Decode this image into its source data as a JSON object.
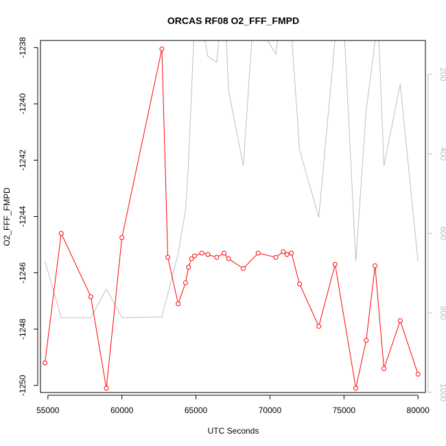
{
  "chart_data": {
    "type": "line",
    "title": "ORCAS RF08 O2_FFF_FMPD",
    "xlabel": "UTC Seconds",
    "ylabel": "O2_FFF_FMPD",
    "xlim": [
      54500,
      80500
    ],
    "ylim": [
      -1250.25,
      -1237.75
    ],
    "x_ticks": [
      "55000",
      "60000",
      "65000",
      "70000",
      "75000",
      "80000"
    ],
    "y_ticks": [
      "-1250",
      "-1248",
      "-1246",
      "-1244",
      "-1242",
      "-1240",
      "-1238"
    ],
    "secondary_axis": {
      "position": "right",
      "ticks": [
        "200",
        "400",
        "600",
        "800",
        "1000"
      ],
      "lim": [
        1000,
        115
      ],
      "color": "#bbbbbb"
    },
    "grid": false,
    "legend": "none",
    "series": [
      {
        "color": "#ff0000",
        "axis": "left",
        "style": "line+points",
        "x": [
          54800,
          55900,
          57900,
          58950,
          60000,
          62700,
          63100,
          63800,
          64300,
          64500,
          64700,
          64900,
          65400,
          65800,
          66400,
          66900,
          67200,
          68200,
          69200,
          70400,
          70900,
          71150,
          71450,
          72000,
          73300,
          74400,
          75800,
          76500,
          77100,
          77700,
          78800,
          80000
        ],
        "values": [
          -1249.2,
          -1244.6,
          -1246.85,
          -1250.1,
          -1244.75,
          -1238.05,
          -1245.45,
          -1247.1,
          -1246.35,
          -1245.8,
          -1245.5,
          -1245.4,
          -1245.3,
          -1245.35,
          -1245.45,
          -1245.3,
          -1245.5,
          -1245.85,
          -1245.3,
          -1245.45,
          -1245.25,
          -1245.35,
          -1245.3,
          -1246.4,
          -1247.9,
          -1245.7,
          -1250.1,
          -1248.4,
          -1245.75,
          -1249.4,
          -1247.7,
          -1249.6
        ]
      },
      {
        "color": "#bebebe",
        "axis": "right",
        "style": "line",
        "x": [
          54800,
          55900,
          57900,
          58950,
          60000,
          62700,
          63800,
          64300,
          64500,
          65000,
          65800,
          66400,
          66900,
          67200,
          68200,
          68800,
          69200,
          69600,
          70400,
          71000,
          71450,
          72000,
          73300,
          74400,
          75000,
          75800,
          76500,
          77300,
          77700,
          78800,
          80000
        ],
        "values": [
          670,
          812,
          812,
          740,
          812,
          810,
          650,
          540,
          420,
          -20,
          155,
          170,
          -30,
          240,
          430,
          100,
          90,
          100,
          150,
          -40,
          95,
          390,
          560,
          110,
          80,
          670,
          290,
          60,
          430,
          225,
          670
        ]
      }
    ]
  }
}
